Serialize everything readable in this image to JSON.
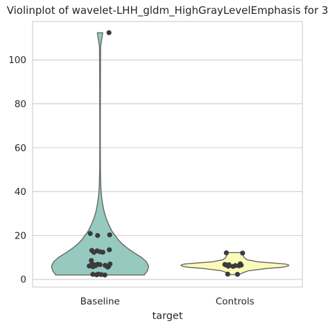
{
  "chart_data": {
    "type": "violin",
    "title": "Violinplot of wavelet-LHH_gldm_HighGrayLevelEmphasis for 3",
    "xlabel": "target",
    "ylabel": "",
    "categories": [
      "Baseline",
      "Controls"
    ],
    "ylim": [
      -3.5,
      117.5
    ],
    "yticks": [
      0,
      20,
      40,
      60,
      80,
      100
    ],
    "grid": true,
    "colors": {
      "Baseline": "#96cac0",
      "Controls": "#fbfbb9",
      "violin_edge": "#666666",
      "points": "#3b3b3b",
      "grid": "#cccccc",
      "frame": "#cccccc"
    },
    "series": [
      {
        "name": "Baseline",
        "range": [
          2.0,
          112.4
        ],
        "points": [
          112.4,
          20.3,
          20.9,
          20.0,
          13.5,
          13.2,
          13.0,
          12.6,
          12.4,
          12.3,
          8.6,
          7.0,
          6.9,
          6.8,
          6.7,
          6.6,
          6.5,
          6.4,
          6.3,
          6.2,
          6.1,
          6.0,
          5.8,
          5.6,
          2.4,
          2.3,
          2.2,
          2.1,
          2.0
        ],
        "density": [
          [
            2.0,
            0.82
          ],
          [
            4.0,
            0.88
          ],
          [
            6.0,
            0.9
          ],
          [
            8.0,
            0.86
          ],
          [
            10.0,
            0.77
          ],
          [
            12.0,
            0.64
          ],
          [
            14.0,
            0.52
          ],
          [
            16.0,
            0.42
          ],
          [
            18.0,
            0.34
          ],
          [
            20.0,
            0.28
          ],
          [
            22.0,
            0.22
          ],
          [
            25.0,
            0.16
          ],
          [
            28.0,
            0.11
          ],
          [
            31.0,
            0.075
          ],
          [
            34.0,
            0.05
          ],
          [
            37.0,
            0.032
          ],
          [
            40.0,
            0.02
          ],
          [
            44.0,
            0.012
          ],
          [
            50.0,
            0.007
          ],
          [
            60.0,
            0.005
          ],
          [
            70.0,
            0.005
          ],
          [
            80.0,
            0.006
          ],
          [
            90.0,
            0.007
          ],
          [
            100.0,
            0.008
          ],
          [
            106.0,
            0.01
          ],
          [
            110.0,
            0.035
          ],
          [
            112.4,
            0.05
          ]
        ]
      },
      {
        "name": "Controls",
        "range": [
          2.2,
          12.2
        ],
        "points": [
          12.1,
          12.0,
          7.1,
          6.8,
          6.7,
          6.6,
          6.5,
          6.4,
          6.3,
          6.2,
          6.0,
          5.9,
          2.4,
          2.3
        ],
        "density": [
          [
            2.2,
            0.08
          ],
          [
            3.0,
            0.14
          ],
          [
            4.0,
            0.26
          ],
          [
            5.0,
            0.6
          ],
          [
            5.5,
            0.85
          ],
          [
            6.0,
            0.98
          ],
          [
            6.5,
            1.0
          ],
          [
            7.0,
            0.94
          ],
          [
            7.5,
            0.7
          ],
          [
            8.0,
            0.42
          ],
          [
            9.0,
            0.22
          ],
          [
            10.0,
            0.17
          ],
          [
            11.0,
            0.15
          ],
          [
            12.2,
            0.12
          ]
        ]
      }
    ]
  }
}
